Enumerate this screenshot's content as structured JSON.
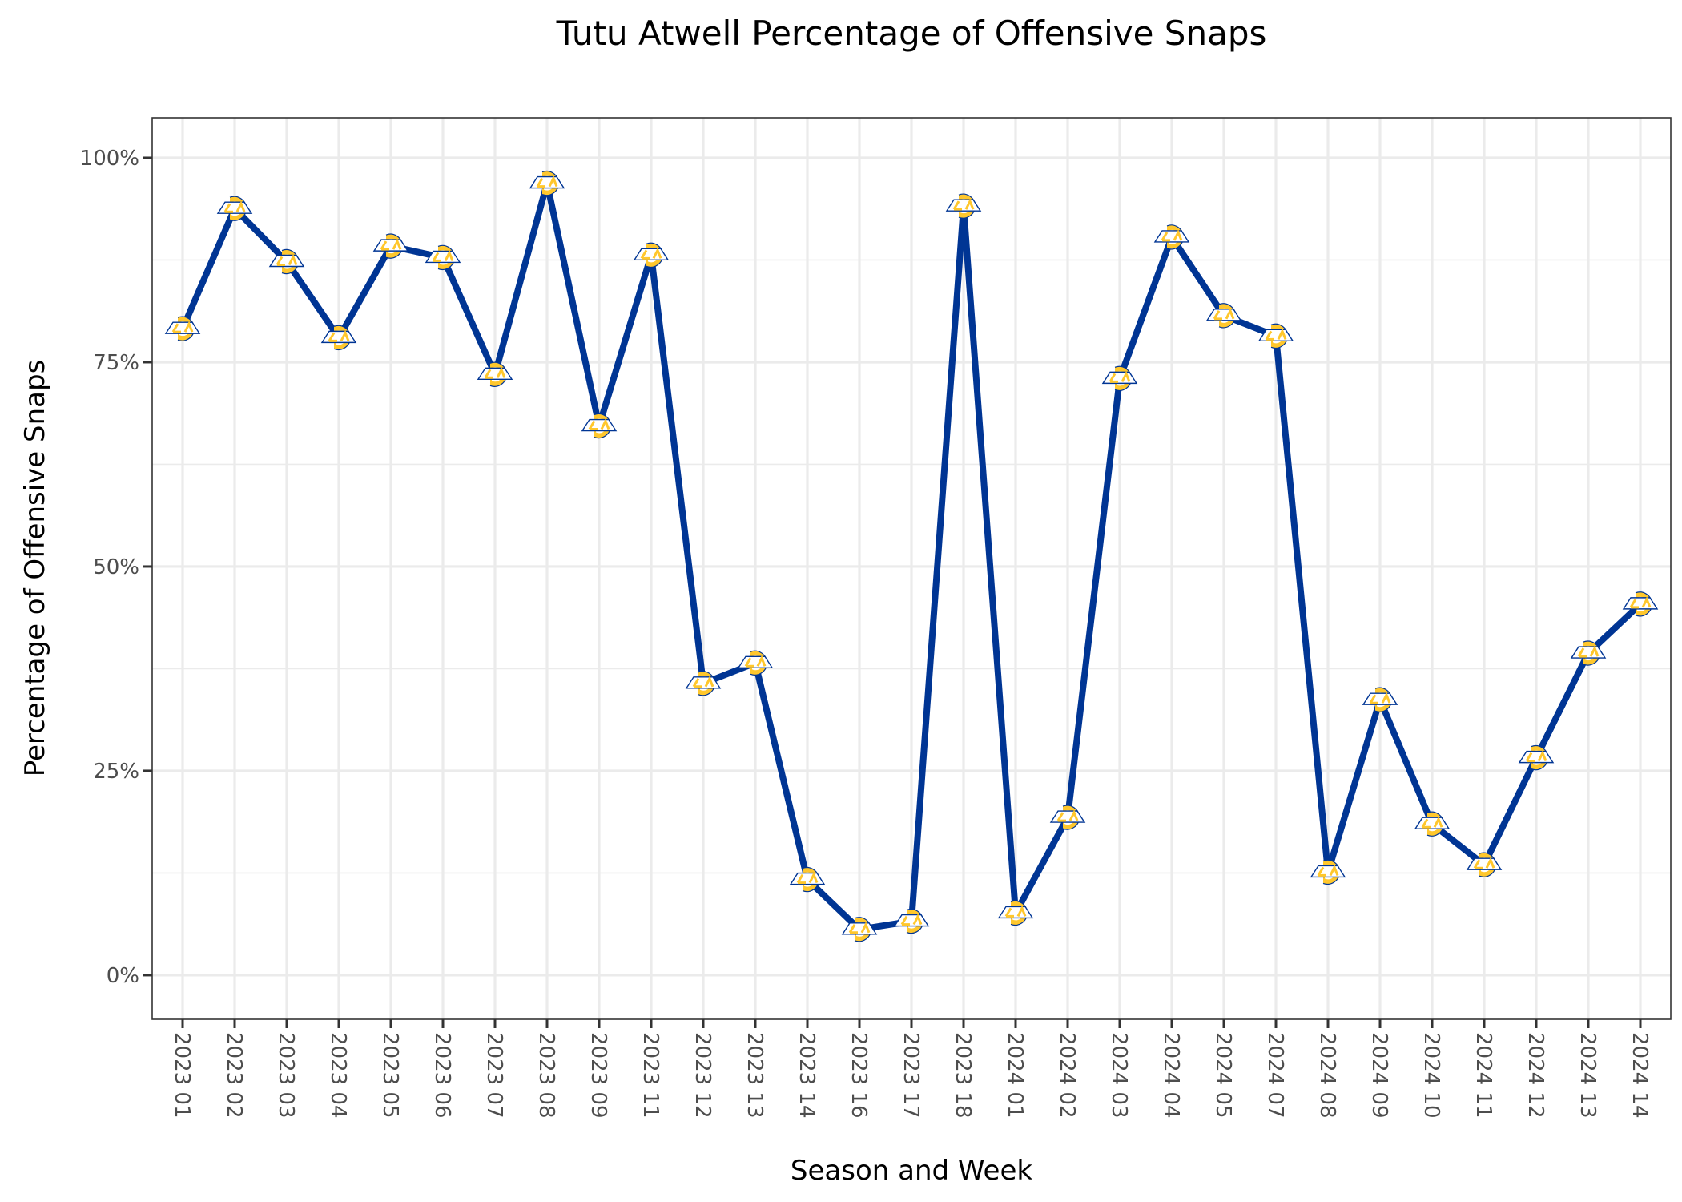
{
  "chart_data": {
    "type": "line",
    "title": "Tutu Atwell Percentage of Offensive Snaps",
    "xlabel": "Season and Week",
    "ylabel": "Percentage of Offensive Snaps",
    "ylim": [
      -5.4,
      104.9
    ],
    "yticks": [
      0,
      25,
      50,
      75,
      100
    ],
    "ytick_labels": [
      "0%",
      "25%",
      "50%",
      "75%",
      "100%"
    ],
    "grid": true,
    "legend": "none",
    "colors": {
      "line": "#003594",
      "marker_gold": "#FFC72C",
      "marker_blue": "#003594"
    },
    "marker": "rams-logo-icon",
    "categories": [
      "2023 01",
      "2023 02",
      "2023 03",
      "2023 04",
      "2023 05",
      "2023 06",
      "2023 07",
      "2023 08",
      "2023 09",
      "2023 11",
      "2023 12",
      "2023 13",
      "2023 14",
      "2023 16",
      "2023 17",
      "2023 18",
      "2024 01",
      "2024 02",
      "2024 03",
      "2024 04",
      "2024 05",
      "2024 07",
      "2024 08",
      "2024 09",
      "2024 10",
      "2024 11",
      "2024 12",
      "2024 13",
      "2024 14"
    ],
    "values": [
      79.1,
      93.8,
      87.3,
      78.0,
      89.2,
      87.8,
      73.5,
      96.9,
      67.2,
      88.1,
      35.7,
      38.2,
      11.7,
      5.6,
      6.6,
      94.1,
      7.6,
      19.3,
      73.0,
      90.3,
      80.7,
      78.2,
      12.6,
      33.7,
      18.5,
      13.5,
      26.6,
      39.4,
      45.4
    ]
  }
}
